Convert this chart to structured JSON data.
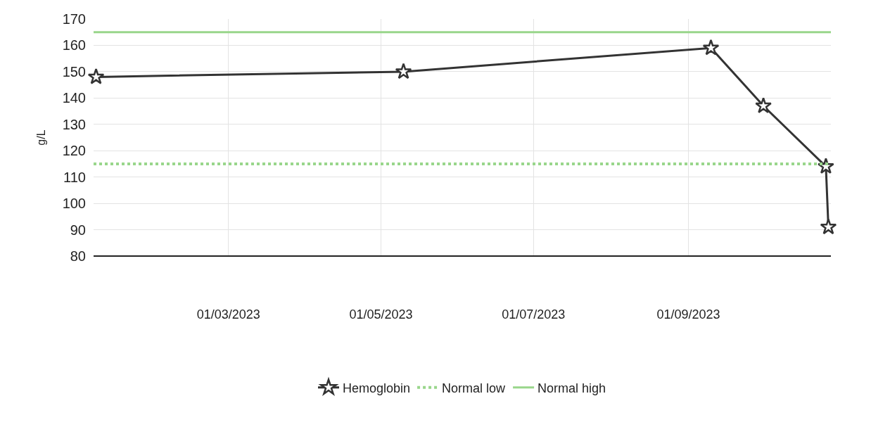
{
  "chart_data": {
    "type": "line",
    "ylabel": "g/L",
    "x": [
      "2023-01-07",
      "2023-05-10",
      "2023-09-10",
      "2023-10-01",
      "2023-10-26",
      "2023-10-27"
    ],
    "series": [
      {
        "name": "Hemoglobin",
        "color": "#333333",
        "values": [
          148,
          150,
          159,
          137,
          114,
          91
        ],
        "marker": "star",
        "line_style": "solid"
      },
      {
        "name": "Normal low",
        "color": "#99d68b",
        "x": [
          "2023-01-06",
          "2023-10-28"
        ],
        "values": [
          115,
          115
        ],
        "marker": "none",
        "line_style": "dotted"
      },
      {
        "name": "Normal high",
        "color": "#99d68b",
        "x": [
          "2023-01-06",
          "2023-10-28"
        ],
        "values": [
          165,
          165
        ],
        "marker": "none",
        "line_style": "solid"
      }
    ],
    "xlim": [
      "2023-01-06",
      "2023-10-28"
    ],
    "xticks": [
      {
        "value": "2023-03-01",
        "label": "01/03/2023"
      },
      {
        "value": "2023-05-01",
        "label": "01/05/2023"
      },
      {
        "value": "2023-07-01",
        "label": "01/07/2023"
      },
      {
        "value": "2023-09-01",
        "label": "01/09/2023"
      }
    ],
    "ylim": [
      80,
      170
    ],
    "yticks": [
      80,
      90,
      100,
      110,
      120,
      130,
      140,
      150,
      160,
      170
    ],
    "grid": true,
    "legend": "bottom"
  }
}
